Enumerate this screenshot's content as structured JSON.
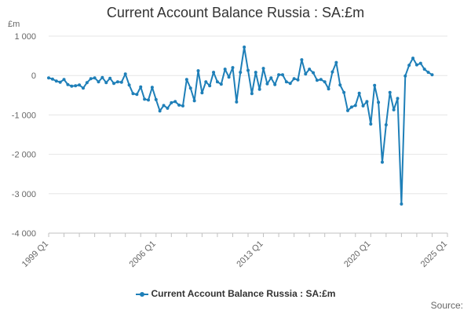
{
  "title": "Current Account Balance Russia : SA:£m",
  "unit_label": "£m",
  "source_label": "Source:",
  "legend_label": "Current Account Balance Russia : SA:£m",
  "series_color": "#1e7fb8",
  "grid_color": "#e6e6e6",
  "chart_data": {
    "type": "line",
    "title": "Current Account Balance Russia : SA:£m",
    "xlabel": "",
    "ylabel": "£m",
    "ylim": [
      -4000,
      1000
    ],
    "y_ticks": [
      1000,
      0,
      -1000,
      -2000,
      -3000,
      -4000
    ],
    "y_tick_labels": [
      "1 000",
      "0",
      "-1 000",
      "-2 000",
      "-3 000",
      "-4 000"
    ],
    "x_ticks": [
      "1999 Q1",
      "2006 Q1",
      "2013 Q1",
      "2020 Q1",
      "2025 Q1"
    ],
    "x_start": "1999 Q1",
    "x_end": "2025 Q1",
    "grid": "horizontal",
    "legend_position": "bottom",
    "series": [
      {
        "name": "Current Account Balance Russia : SA:£m",
        "x": [
          "1999 Q1",
          "1999 Q2",
          "1999 Q3",
          "1999 Q4",
          "2000 Q1",
          "2000 Q2",
          "2000 Q3",
          "2000 Q4",
          "2001 Q1",
          "2001 Q2",
          "2001 Q3",
          "2001 Q4",
          "2002 Q1",
          "2002 Q2",
          "2002 Q3",
          "2002 Q4",
          "2003 Q1",
          "2003 Q2",
          "2003 Q3",
          "2003 Q4",
          "2004 Q1",
          "2004 Q2",
          "2004 Q3",
          "2004 Q4",
          "2005 Q1",
          "2005 Q2",
          "2005 Q3",
          "2005 Q4",
          "2006 Q1",
          "2006 Q2",
          "2006 Q3",
          "2006 Q4",
          "2007 Q1",
          "2007 Q2",
          "2007 Q3",
          "2007 Q4",
          "2008 Q1",
          "2008 Q2",
          "2008 Q3",
          "2008 Q4",
          "2009 Q1",
          "2009 Q2",
          "2009 Q3",
          "2009 Q4",
          "2010 Q1",
          "2010 Q2",
          "2010 Q3",
          "2010 Q4",
          "2011 Q1",
          "2011 Q2",
          "2011 Q3",
          "2011 Q4",
          "2012 Q1",
          "2012 Q2",
          "2012 Q3",
          "2012 Q4",
          "2013 Q1",
          "2013 Q2",
          "2013 Q3",
          "2013 Q4",
          "2014 Q1",
          "2014 Q2",
          "2014 Q3",
          "2014 Q4",
          "2015 Q1",
          "2015 Q2",
          "2015 Q3",
          "2015 Q4",
          "2016 Q1",
          "2016 Q2",
          "2016 Q3",
          "2016 Q4",
          "2017 Q1",
          "2017 Q2",
          "2017 Q3",
          "2017 Q4",
          "2018 Q1",
          "2018 Q2",
          "2018 Q3",
          "2018 Q4",
          "2019 Q1",
          "2019 Q2",
          "2019 Q3",
          "2019 Q4",
          "2020 Q1",
          "2020 Q2",
          "2020 Q3",
          "2020 Q4",
          "2021 Q1",
          "2021 Q2",
          "2021 Q3",
          "2021 Q4",
          "2022 Q1",
          "2022 Q2",
          "2022 Q3",
          "2022 Q4",
          "2023 Q1",
          "2023 Q2",
          "2023 Q3",
          "2023 Q4",
          "2024 Q1"
        ],
        "values": [
          -60,
          -90,
          -140,
          -170,
          -100,
          -230,
          -270,
          -260,
          -240,
          -320,
          -180,
          -80,
          -60,
          -160,
          -50,
          -180,
          -70,
          -200,
          -160,
          -170,
          40,
          -240,
          -460,
          -480,
          -290,
          -600,
          -620,
          -300,
          -610,
          -900,
          -760,
          -830,
          -690,
          -660,
          -750,
          -770,
          -100,
          -320,
          -640,
          120,
          -440,
          -160,
          -260,
          80,
          -160,
          -220,
          160,
          -40,
          200,
          -670,
          80,
          720,
          130,
          -460,
          80,
          -350,
          180,
          -210,
          -60,
          -230,
          20,
          20,
          -160,
          -200,
          -80,
          -110,
          400,
          40,
          160,
          70,
          -120,
          -100,
          -160,
          -340,
          90,
          330,
          -240,
          -430,
          -890,
          -800,
          -760,
          -450,
          -770,
          -660,
          -1230,
          -250,
          -680,
          -2200,
          -1250,
          -430,
          -870,
          -580,
          -3260,
          -10,
          260,
          440,
          270,
          310,
          160,
          80,
          20
        ]
      }
    ]
  }
}
